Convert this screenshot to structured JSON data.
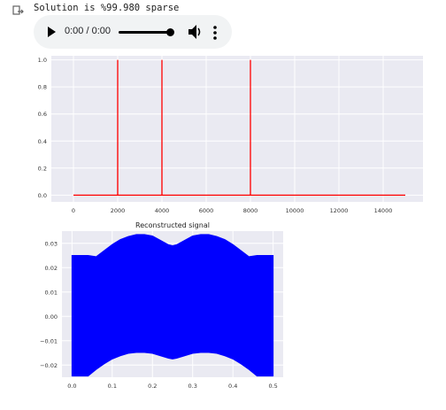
{
  "output": {
    "stdout": "Solution is %99.980 sparse"
  },
  "audio_player": {
    "time": "0:00 / 0:00",
    "progress": 1.0
  },
  "chart_data": [
    {
      "type": "line",
      "title": "",
      "xlabel": "",
      "ylabel": "",
      "xlim": [
        -1000,
        15800
      ],
      "ylim": [
        -0.05,
        1.03
      ],
      "xticks": [
        0,
        2000,
        4000,
        6000,
        8000,
        10000,
        12000,
        14000
      ],
      "xtick_labels": [
        "0",
        "2000",
        "4000",
        "6000",
        "8000",
        "10000",
        "12000",
        "14000"
      ],
      "yticks": [
        0.0,
        0.2,
        0.4,
        0.6,
        0.8,
        1.0
      ],
      "ytick_labels": [
        "0.0",
        "0.2",
        "0.4",
        "0.6",
        "0.8",
        "1.0"
      ],
      "grid": true,
      "series": [
        {
          "color": "#ff0000",
          "x": [
            0,
            1999,
            2000,
            2001,
            3999,
            4000,
            4001,
            7999,
            8000,
            8001,
            15000
          ],
          "y": [
            0,
            0,
            1.0,
            0,
            0,
            1.0,
            0,
            0,
            1.0,
            0,
            0
          ]
        }
      ]
    },
    {
      "type": "area",
      "title": "Reconstructed signal",
      "xlabel": "",
      "ylabel": "",
      "xlim": [
        -0.025,
        0.525
      ],
      "ylim": [
        -0.025,
        0.035
      ],
      "xticks": [
        0.0,
        0.1,
        0.2,
        0.3,
        0.4,
        0.5
      ],
      "xtick_labels": [
        "0.0",
        "0.1",
        "0.2",
        "0.3",
        "0.4",
        "0.5"
      ],
      "yticks": [
        -0.02,
        -0.01,
        0.0,
        0.01,
        0.02,
        0.03
      ],
      "ytick_labels": [
        "−0.02",
        "−0.01",
        "0.00",
        "0.01",
        "0.02",
        "0.03"
      ],
      "grid": true,
      "series": [
        {
          "color": "#0000ff",
          "x": [
            0.0,
            0.02,
            0.04,
            0.06,
            0.08,
            0.1,
            0.12,
            0.14,
            0.16,
            0.18,
            0.2,
            0.22,
            0.24,
            0.25,
            0.26,
            0.28,
            0.3,
            0.32,
            0.34,
            0.36,
            0.38,
            0.4,
            0.42,
            0.44,
            0.46,
            0.48,
            0.5
          ],
          "upper": [
            0.025,
            0.025,
            0.025,
            0.0245,
            0.027,
            0.0295,
            0.0315,
            0.0328,
            0.0336,
            0.0336,
            0.033,
            0.0312,
            0.0294,
            0.029,
            0.0294,
            0.0312,
            0.033,
            0.0336,
            0.0336,
            0.0328,
            0.0315,
            0.0295,
            0.027,
            0.0245,
            0.025,
            0.025,
            0.025
          ],
          "lower": [
            -0.0245,
            -0.0245,
            -0.0245,
            -0.0218,
            -0.0195,
            -0.0175,
            -0.0162,
            -0.0152,
            -0.0148,
            -0.0148,
            -0.0152,
            -0.0162,
            -0.0172,
            -0.0175,
            -0.0172,
            -0.0162,
            -0.0152,
            -0.0148,
            -0.0148,
            -0.0152,
            -0.0162,
            -0.0175,
            -0.0195,
            -0.0218,
            -0.0245,
            -0.0245,
            -0.0245
          ]
        }
      ]
    }
  ]
}
